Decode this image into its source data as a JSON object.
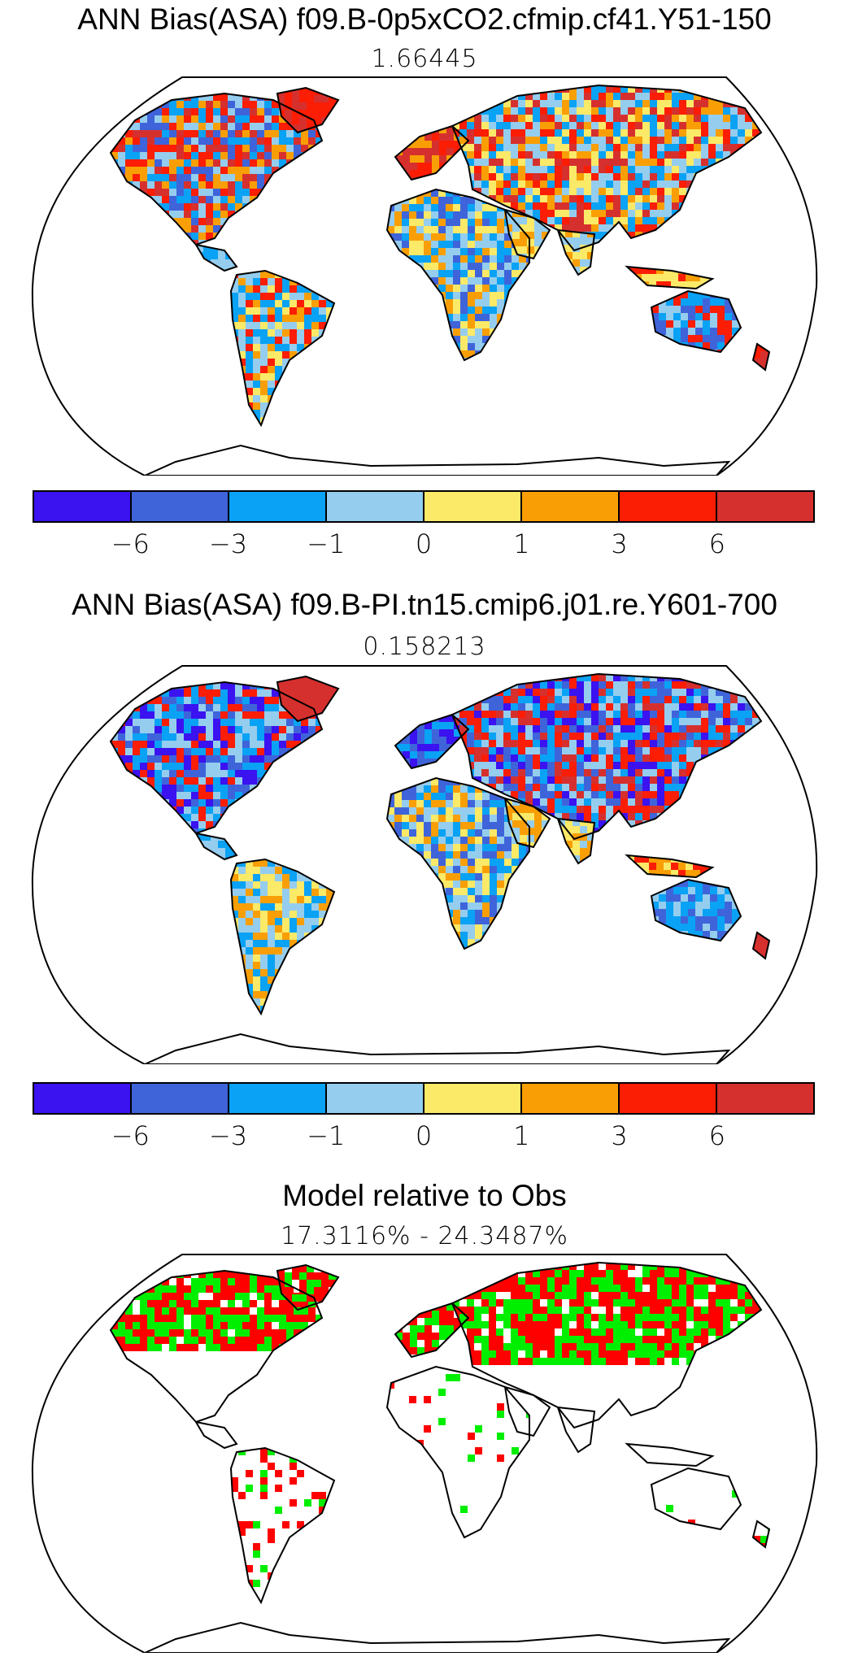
{
  "panels": [
    {
      "title": "ANN Bias(ASA) f09.B-0p5xCO2.cfmip.cf41.Y51-150",
      "value": "1.66445"
    },
    {
      "title": "ANN Bias(ASA) f09.B-PI.tn15.cmip6.j01.re.Y601-700",
      "value": "0.158213"
    },
    {
      "title": "Model relative to Obs",
      "value": "17.3116% - 24.3487%"
    }
  ],
  "colorbar": {
    "colors": [
      "#3b12f0",
      "#3f64da",
      "#0aa2f5",
      "#95cdee",
      "#fbe968",
      "#f99f05",
      "#fb1d04",
      "#d6302e"
    ],
    "ticks": [
      "−6",
      "−3",
      "−1",
      "0",
      "1",
      "3",
      "6"
    ]
  },
  "comparison_colors": {
    "worse": "#ff0000",
    "better": "#00ee00"
  }
}
